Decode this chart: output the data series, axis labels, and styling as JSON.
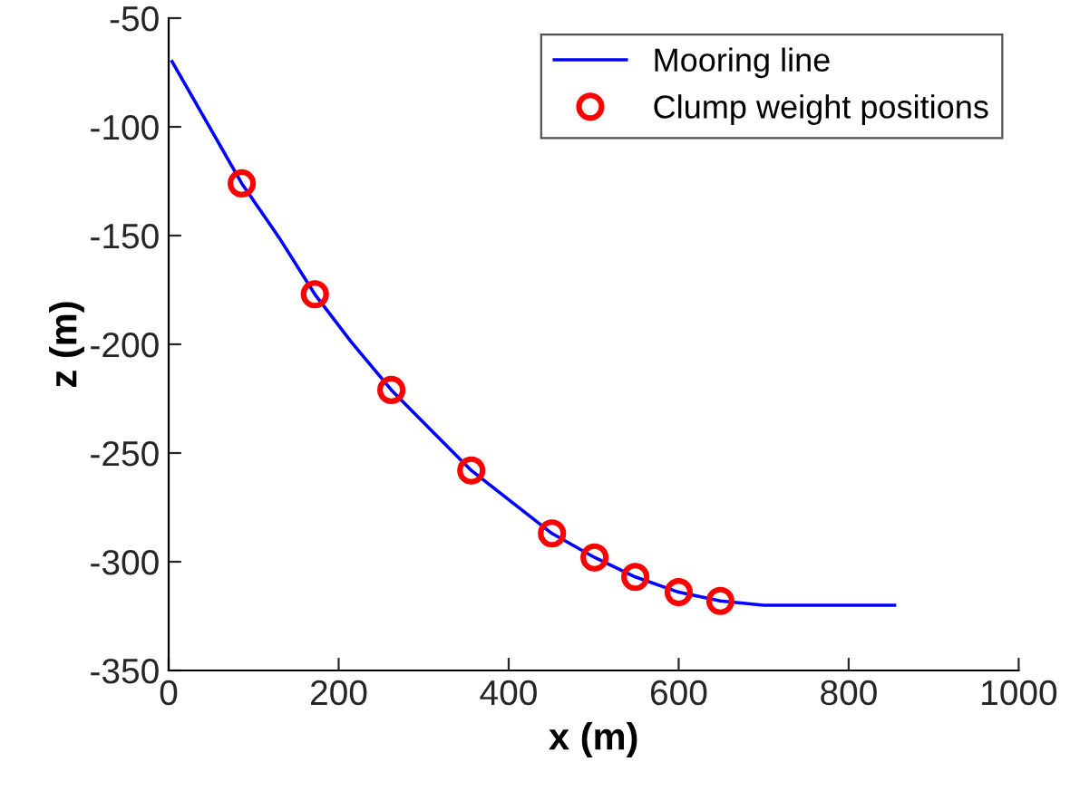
{
  "chart_data": {
    "type": "line",
    "xlabel": "x (m)",
    "ylabel": "z (m)",
    "xlim": [
      0,
      1000
    ],
    "ylim": [
      -350,
      -50
    ],
    "xticks": [
      0,
      200,
      400,
      600,
      800,
      1000
    ],
    "yticks": [
      -350,
      -300,
      -250,
      -200,
      -150,
      -100,
      -50
    ],
    "grid": false,
    "legend": "top right",
    "series": [
      {
        "name": "Mooring line",
        "color": "#0000ff",
        "marker": "none",
        "x": [
          4,
          45,
          86,
          130,
          172,
          215,
          262,
          310,
          356,
          405,
          451,
          501,
          549,
          600,
          649,
          700,
          750,
          854
        ],
        "values": [
          -70,
          -98,
          -126,
          -151,
          -177,
          -199,
          -221,
          -240,
          -258,
          -273,
          -287,
          -298,
          -307,
          -314,
          -318,
          -320,
          -320,
          -320
        ]
      },
      {
        "name": "Clump weight positions",
        "type": "scatter",
        "color": "#ff0000",
        "marker": "circle",
        "x": [
          86,
          172,
          262,
          356,
          451,
          501,
          549,
          600,
          649
        ],
        "values": [
          -126,
          -177,
          -221,
          -258,
          -287,
          -298,
          -307,
          -314,
          -318
        ]
      }
    ]
  }
}
